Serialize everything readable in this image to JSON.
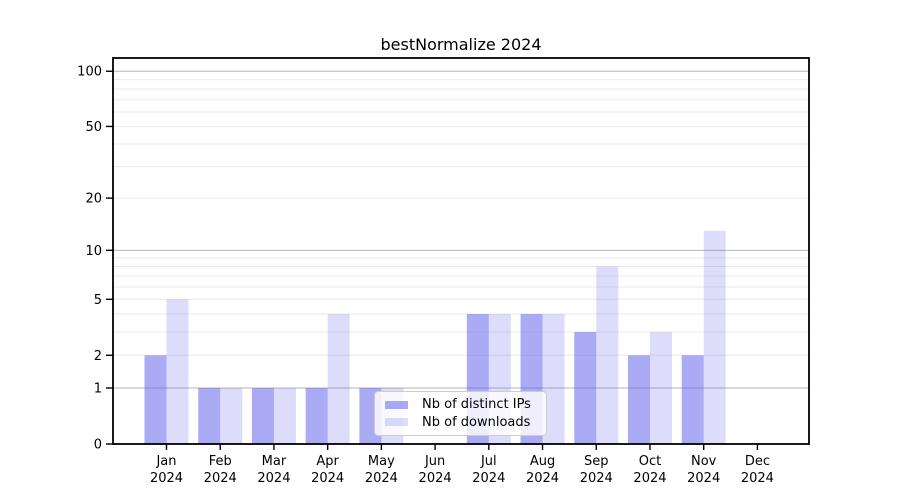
{
  "chart_data": {
    "type": "bar",
    "title": "bestNormalize 2024",
    "categories": [
      "Jan 2024",
      "Feb 2024",
      "Mar 2024",
      "Apr 2024",
      "May 2024",
      "Jun 2024",
      "Jul 2024",
      "Aug 2024",
      "Sep 2024",
      "Oct 2024",
      "Nov 2024",
      "Dec 2024"
    ],
    "x_tick_months": [
      "Jan",
      "Feb",
      "Mar",
      "Apr",
      "May",
      "Jun",
      "Jul",
      "Aug",
      "Sep",
      "Oct",
      "Nov",
      "Dec"
    ],
    "x_tick_year": "2024",
    "series": [
      {
        "name": "Nb of distinct IPs",
        "color": "rgba(85,85,235,0.5)",
        "values": [
          2,
          1,
          1,
          1,
          1,
          0,
          4,
          4,
          3,
          2,
          2,
          0
        ]
      },
      {
        "name": "Nb of downloads",
        "color": "rgba(85,85,235,0.2)",
        "values": [
          5,
          1,
          1,
          4,
          1,
          0,
          4,
          4,
          8,
          3,
          13,
          0
        ]
      }
    ],
    "xlabel": "",
    "ylabel": "",
    "yscale": "log1p",
    "ylim": [
      0,
      118
    ],
    "y_ticks": [
      0,
      1,
      2,
      5,
      10,
      20,
      50,
      100
    ],
    "grid_major": [
      1,
      10,
      100
    ],
    "grid_minor": [
      2,
      3,
      4,
      5,
      6,
      7,
      8,
      9,
      20,
      30,
      40,
      50,
      60,
      70,
      80,
      90
    ],
    "grid": "on",
    "legend_position": "lower center",
    "colors": {
      "axis": "#000000",
      "grid_major": "#b6b6b6",
      "grid_minor": "#e9e9e9",
      "background": "#ffffff",
      "bar_base": "#5555eb"
    }
  }
}
